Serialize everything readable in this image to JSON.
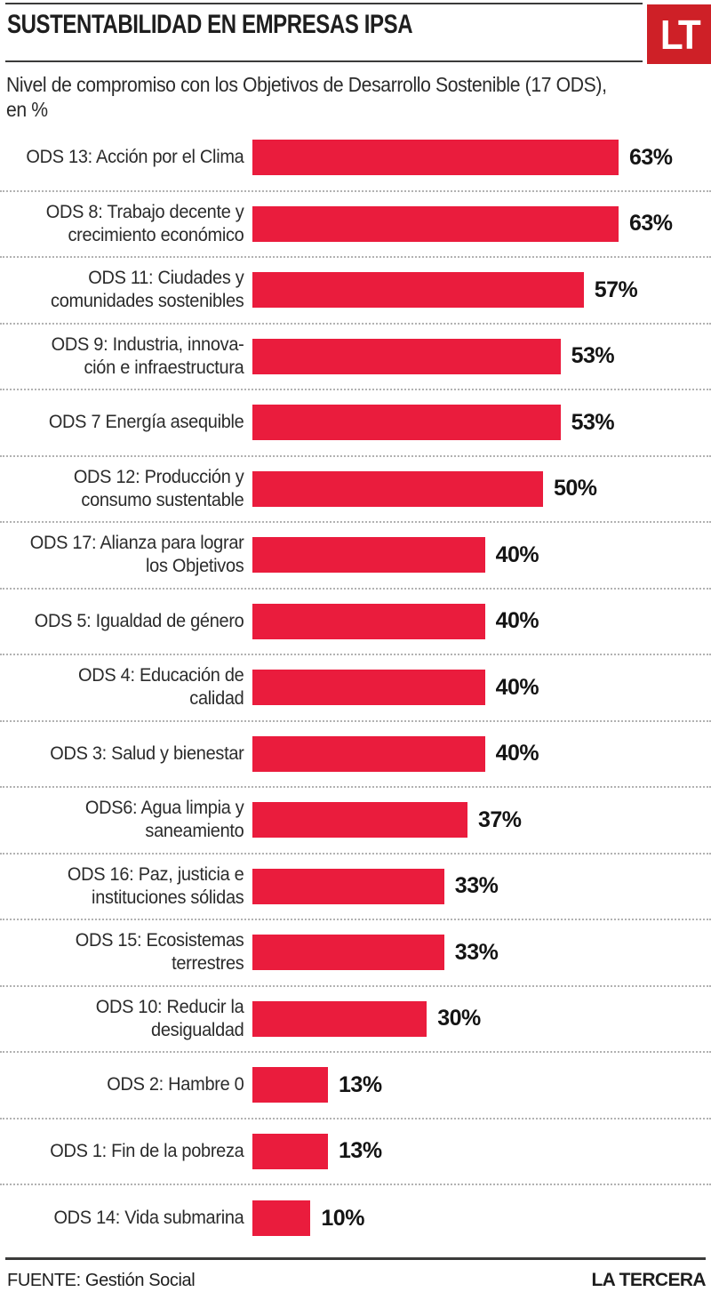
{
  "header": {
    "title": "SUSTENTABILIDAD EN EMPRESAS IPSA",
    "logo_text": "LT",
    "logo_color": "#ce2027"
  },
  "subtitle_lines": [
    "Nivel de compromiso con los Objetivos de Desarrollo Sostenible (17 ODS),",
    "en %"
  ],
  "chart_data": {
    "type": "bar",
    "orientation": "horizontal",
    "title": "SUSTENTABILIDAD EN EMPRESAS IPSA",
    "subtitle": "Nivel de compromiso con los Objetivos de Desarrollo Sostenible (17 ODS), en %",
    "unit": "%",
    "xlim": [
      0,
      63
    ],
    "grid": false,
    "legend": false,
    "bar_color": "#ea1c3d",
    "categories": [
      "ODS 13: Acción por el Clima",
      "ODS 8: Trabajo decente y crecimiento económico",
      "ODS 11: Ciudades y comunidades sostenibles",
      "ODS 9: Industria, innovación e infraestructura",
      "ODS 7 Energía asequible",
      "ODS 12: Producción y consumo sustentable",
      "ODS 17: Alianza para lograr los Objetivos",
      "ODS 5: Igualdad de género",
      "ODS 4: Educación de calidad",
      "ODS 3: Salud y bienestar",
      "ODS6: Agua limpia y saneamiento",
      "ODS 16: Paz, justicia e instituciones sólidas",
      "ODS 15: Ecosistemas terrestres",
      "ODS 10: Reducir la desigualdad",
      "ODS 2: Hambre 0",
      "ODS 1: Fin de la pobreza",
      "ODS 14: Vida submarina"
    ],
    "label_lines": [
      [
        "ODS 13: Acción por el Clima"
      ],
      [
        "ODS 8: Trabajo decente y",
        "crecimiento económico"
      ],
      [
        "ODS 11: Ciudades y",
        "comunidades sostenibles"
      ],
      [
        "ODS 9: Industria, innova-",
        "ción e infraestructura"
      ],
      [
        "ODS 7 Energía asequible"
      ],
      [
        "ODS 12: Producción y",
        "consumo sustentable"
      ],
      [
        "ODS 17: Alianza para lograr",
        "los Objetivos"
      ],
      [
        "ODS 5: Igualdad de género"
      ],
      [
        "ODS 4: Educación de",
        "calidad"
      ],
      [
        "ODS 3: Salud y bienestar"
      ],
      [
        "ODS6: Agua limpia y",
        "saneamiento"
      ],
      [
        "ODS 16: Paz, justicia e",
        "instituciones sólidas"
      ],
      [
        "ODS 15: Ecosistemas",
        "terrestres"
      ],
      [
        "ODS 10: Reducir la",
        "desigualdad"
      ],
      [
        "ODS 2: Hambre 0"
      ],
      [
        "ODS 1: Fin de la pobreza"
      ],
      [
        "ODS 14: Vida submarina"
      ]
    ],
    "values": [
      63,
      63,
      57,
      53,
      53,
      50,
      40,
      40,
      40,
      40,
      37,
      33,
      33,
      30,
      13,
      13,
      10
    ]
  },
  "footer": {
    "source": "FUENTE: Gestión Social",
    "brand": "LA TERCERA"
  }
}
